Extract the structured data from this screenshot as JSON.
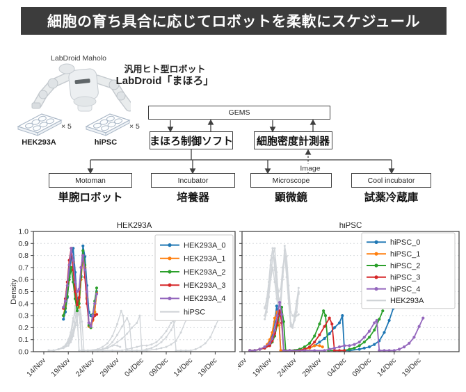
{
  "title_bar": {
    "text": "細胞の育ち具合に応じてロボットを柔軟にスケジュール",
    "bg": "#3c3c3c",
    "fg": "#ffffff"
  },
  "robot": {
    "caption": "LabDroid Maholo",
    "heading_line1": "汎用ヒト型ロボット",
    "heading_line2": "LabDroid「まほろ」"
  },
  "plates": [
    {
      "label": "HEK293A",
      "count": "× 5"
    },
    {
      "label": "hiPSC",
      "count": "× 5"
    }
  ],
  "diagram": {
    "gems": "GEMS",
    "control_soft": "まほろ制御ソフト",
    "density_meter": "細胞密度計測器",
    "image_label": "Image",
    "devices": [
      {
        "en": "Motoman",
        "ja": "単腕ロボット"
      },
      {
        "en": "Incubator",
        "ja": "培養器"
      },
      {
        "en": "Microscope",
        "ja": "顕微鏡"
      },
      {
        "en": "Cool incubator",
        "ja": "試薬冷蔵庫"
      }
    ]
  },
  "chart_data": {
    "type": "line",
    "ylabel": "Density",
    "ylim": [
      0,
      1.0
    ],
    "grid": "horizontal-dashed",
    "ytick_labels": [
      "0.0",
      "0.1",
      "0.2",
      "0.3",
      "0.4",
      "0.5",
      "0.6",
      "0.7",
      "0.8",
      "0.9",
      "1.0"
    ],
    "xtick_labels": [
      "14/Nov",
      "19/Nov",
      "24/Nov",
      "29/Nov",
      "04/Dec",
      "09/Dec",
      "14/Dec",
      "19/Dec"
    ],
    "xtick_days": [
      0,
      5,
      10,
      15,
      20,
      25,
      30,
      35
    ],
    "background_color": "#d1d5d9",
    "charts": [
      {
        "id": "hek",
        "title": "HEK293A",
        "foreground": "hek_series",
        "background": "hipsc_series",
        "background_legend": "hiPSC",
        "y_tick_labels_visible": true
      },
      {
        "id": "hipsc",
        "title": "hiPSC",
        "foreground": "hipsc_series",
        "background": "hek_series",
        "background_legend": "HEK293A",
        "y_tick_labels_visible": false
      }
    ],
    "hek_series": [
      {
        "name": "HEK293A_0",
        "color": "#1f77b4",
        "points": [
          [
            4,
            0.27
          ],
          [
            4.4,
            0.33
          ],
          [
            4.8,
            0.45
          ],
          [
            5.2,
            0.62
          ],
          [
            5.6,
            0.78
          ],
          [
            6,
            0.86
          ],
          [
            6.4,
            0.66
          ],
          [
            6.8,
            0.44
          ],
          [
            7.2,
            0.4
          ],
          [
            7.6,
            0.63
          ],
          [
            8,
            0.88
          ],
          [
            8.4,
            0.79
          ],
          [
            8.8,
            0.55
          ],
          [
            9.2,
            0.33
          ],
          [
            9.6,
            0.3
          ],
          [
            10,
            0.29
          ],
          [
            10.4,
            0.33
          ],
          [
            10.8,
            0.5
          ]
        ]
      },
      {
        "name": "HEK293A_1",
        "color": "#ff7f0e",
        "points": [
          [
            4,
            0.3
          ],
          [
            4.4,
            0.38
          ],
          [
            4.8,
            0.52
          ],
          [
            5.2,
            0.72
          ],
          [
            5.6,
            0.86
          ],
          [
            6,
            0.74
          ],
          [
            6.4,
            0.55
          ],
          [
            6.8,
            0.4
          ],
          [
            7.2,
            0.37
          ],
          [
            7.6,
            0.6
          ],
          [
            8,
            0.8
          ],
          [
            8.4,
            0.7
          ],
          [
            8.8,
            0.45
          ],
          [
            9.2,
            0.21
          ],
          [
            9.6,
            0.2
          ],
          [
            10,
            0.26
          ],
          [
            10.4,
            0.33
          ],
          [
            10.8,
            0.49
          ]
        ]
      },
      {
        "name": "HEK293A_2",
        "color": "#2ca02c",
        "points": [
          [
            4,
            0.3
          ],
          [
            4.4,
            0.36
          ],
          [
            4.8,
            0.46
          ],
          [
            5.2,
            0.6
          ],
          [
            5.6,
            0.7
          ],
          [
            6,
            0.58
          ],
          [
            6.4,
            0.44
          ],
          [
            6.8,
            0.34
          ],
          [
            7.2,
            0.4
          ],
          [
            7.6,
            0.62
          ],
          [
            8,
            0.84
          ],
          [
            8.4,
            0.72
          ],
          [
            8.8,
            0.44
          ],
          [
            9.2,
            0.22
          ],
          [
            9.6,
            0.2
          ],
          [
            10,
            0.31
          ],
          [
            10.4,
            0.42
          ],
          [
            10.8,
            0.53
          ]
        ]
      },
      {
        "name": "HEK293A_3",
        "color": "#d62728",
        "points": [
          [
            4,
            0.36
          ],
          [
            4.4,
            0.44
          ],
          [
            4.8,
            0.58
          ],
          [
            5.2,
            0.76
          ],
          [
            5.6,
            0.86
          ],
          [
            6,
            0.68
          ],
          [
            6.4,
            0.5
          ],
          [
            6.8,
            0.39
          ],
          [
            7.2,
            0.45
          ],
          [
            7.6,
            0.7
          ],
          [
            8,
            0.8
          ],
          [
            8.4,
            0.62
          ],
          [
            8.8,
            0.4
          ],
          [
            9.2,
            0.24
          ],
          [
            9.6,
            0.22
          ],
          [
            10,
            0.27
          ],
          [
            10.4,
            0.3
          ],
          [
            10.8,
            0.31
          ]
        ]
      },
      {
        "name": "HEK293A_4",
        "color": "#9467bd",
        "points": [
          [
            4,
            0.37
          ],
          [
            4.4,
            0.42
          ],
          [
            4.8,
            0.55
          ],
          [
            5.2,
            0.72
          ],
          [
            5.6,
            0.86
          ],
          [
            6,
            0.76
          ],
          [
            6.4,
            0.58
          ],
          [
            6.8,
            0.5
          ],
          [
            7.2,
            0.52
          ],
          [
            7.6,
            0.7
          ],
          [
            8,
            0.8
          ],
          [
            8.4,
            0.68
          ],
          [
            8.8,
            0.5
          ],
          [
            9.2,
            0.24
          ],
          [
            9.6,
            0.21
          ],
          [
            10,
            0.3
          ],
          [
            10.4,
            0.4
          ],
          [
            10.8,
            0.48
          ]
        ]
      }
    ],
    "hipsc_series": [
      {
        "name": "hiPSC_0",
        "color": "#1f77b4",
        "points": [
          [
            1,
            0.01
          ],
          [
            2,
            0.01
          ],
          [
            3,
            0.02
          ],
          [
            4,
            0.03
          ],
          [
            4.5,
            0.05
          ],
          [
            5,
            0.08
          ],
          [
            5.5,
            0.13
          ],
          [
            6,
            0.25
          ],
          [
            6.4,
            0.38
          ],
          [
            6.8,
            0.3
          ],
          [
            7.2,
            0.01
          ],
          [
            8,
            0.01
          ],
          [
            10,
            0.01
          ],
          [
            12,
            0.02
          ],
          [
            13,
            0.03
          ],
          [
            14,
            0.05
          ],
          [
            15,
            0.08
          ],
          [
            16,
            0.11
          ],
          [
            17,
            0.15
          ],
          [
            18,
            0.2
          ],
          [
            19,
            0.24
          ],
          [
            19.6,
            0.3
          ],
          [
            20,
            0.01
          ],
          [
            21,
            0.01
          ],
          [
            23,
            0.02
          ],
          [
            24,
            0.03
          ],
          [
            25,
            0.04
          ],
          [
            26,
            0.06
          ],
          [
            27,
            0.09
          ],
          [
            28,
            0.16
          ],
          [
            29,
            0.26
          ],
          [
            29.8,
            0.36
          ]
        ]
      },
      {
        "name": "hiPSC_1",
        "color": "#ff7f0e",
        "points": [
          [
            1,
            0.01
          ],
          [
            2,
            0.01
          ],
          [
            3,
            0.02
          ],
          [
            4,
            0.04
          ],
          [
            4.5,
            0.06
          ],
          [
            5,
            0.1
          ],
          [
            5.5,
            0.16
          ],
          [
            6,
            0.28
          ],
          [
            6.5,
            0.33
          ],
          [
            6.9,
            0.22
          ],
          [
            7.2,
            0.01
          ],
          [
            8,
            0.01
          ],
          [
            10,
            0.01
          ],
          [
            12,
            0.02
          ],
          [
            13,
            0.03
          ],
          [
            14,
            0.05
          ],
          [
            15,
            0.05
          ],
          [
            15.6,
            0.04
          ]
        ]
      },
      {
        "name": "hiPSC_2",
        "color": "#2ca02c",
        "points": [
          [
            1,
            0.01
          ],
          [
            2,
            0.01
          ],
          [
            3,
            0.02
          ],
          [
            4,
            0.03
          ],
          [
            5,
            0.05
          ],
          [
            5.5,
            0.08
          ],
          [
            6,
            0.13
          ],
          [
            6.5,
            0.22
          ],
          [
            7,
            0.32
          ],
          [
            7.4,
            0.37
          ],
          [
            7.8,
            0.25
          ],
          [
            8.2,
            0.01
          ],
          [
            9,
            0.01
          ],
          [
            11,
            0.02
          ],
          [
            12,
            0.04
          ],
          [
            13,
            0.07
          ],
          [
            14,
            0.13
          ],
          [
            15,
            0.23
          ],
          [
            15.8,
            0.34
          ],
          [
            16.2,
            0.3
          ],
          [
            16.8,
            0.01
          ],
          [
            18,
            0.01
          ],
          [
            20,
            0.01
          ],
          [
            21,
            0.02
          ],
          [
            22,
            0.03
          ],
          [
            23,
            0.05
          ],
          [
            24,
            0.08
          ],
          [
            25,
            0.12
          ],
          [
            26,
            0.18
          ],
          [
            27,
            0.27
          ],
          [
            27.7,
            0.34
          ]
        ]
      },
      {
        "name": "hiPSC_3",
        "color": "#d62728",
        "points": [
          [
            1,
            0.01
          ],
          [
            2,
            0.01
          ],
          [
            3,
            0.02
          ],
          [
            4,
            0.03
          ],
          [
            5,
            0.05
          ],
          [
            5.5,
            0.09
          ],
          [
            6,
            0.15
          ],
          [
            6.5,
            0.24
          ],
          [
            7,
            0.34
          ],
          [
            7.4,
            0.24
          ],
          [
            7.8,
            0.01
          ],
          [
            9,
            0.01
          ],
          [
            11,
            0.01
          ],
          [
            12,
            0.02
          ],
          [
            13,
            0.04
          ],
          [
            14,
            0.08
          ],
          [
            15,
            0.14
          ],
          [
            16,
            0.21
          ],
          [
            17,
            0.28
          ],
          [
            17.5,
            0.23
          ],
          [
            18,
            0.01
          ],
          [
            19,
            0.01
          ],
          [
            20,
            0.01
          ]
        ]
      },
      {
        "name": "hiPSC_4",
        "color": "#9467bd",
        "points": [
          [
            1,
            0.01
          ],
          [
            2,
            0.01
          ],
          [
            3,
            0.02
          ],
          [
            4,
            0.04
          ],
          [
            5,
            0.07
          ],
          [
            5.5,
            0.11
          ],
          [
            6,
            0.18
          ],
          [
            6.5,
            0.3
          ],
          [
            7,
            0.41
          ],
          [
            7.4,
            0.31
          ],
          [
            7.8,
            0.01
          ],
          [
            9,
            0.01
          ],
          [
            12,
            0.01
          ],
          [
            14,
            0.01
          ],
          [
            16,
            0.01
          ],
          [
            17,
            0.02
          ],
          [
            18,
            0.03
          ],
          [
            19,
            0.04
          ],
          [
            20,
            0.05
          ],
          [
            21,
            0.05
          ],
          [
            22,
            0.06
          ],
          [
            23,
            0.08
          ],
          [
            24,
            0.12
          ],
          [
            25,
            0.17
          ],
          [
            26,
            0.24
          ],
          [
            26.5,
            0.26
          ],
          [
            27,
            0.01
          ],
          [
            28,
            0.01
          ],
          [
            29,
            0.01
          ],
          [
            30,
            0.01
          ],
          [
            31,
            0.02
          ],
          [
            32,
            0.04
          ],
          [
            33,
            0.07
          ],
          [
            34,
            0.12
          ],
          [
            35,
            0.21
          ],
          [
            35.8,
            0.28
          ]
        ]
      }
    ]
  }
}
